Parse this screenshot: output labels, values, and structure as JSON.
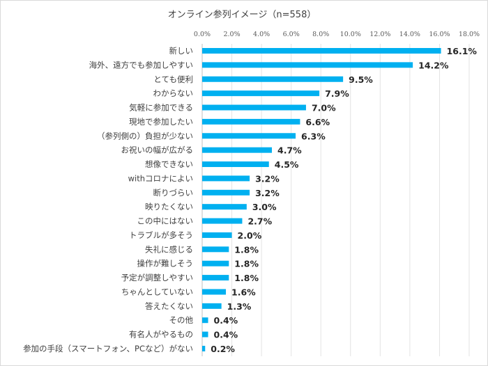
{
  "chart_data": {
    "type": "bar",
    "orientation": "horizontal",
    "title": "オンライン参列イメージ（n=558）",
    "xlabel": "",
    "ylabel": "",
    "xlim": [
      0,
      18
    ],
    "x_ticks": [
      "0.0%",
      "2.0%",
      "4.0%",
      "6.0%",
      "8.0%",
      "10.0%",
      "12.0%",
      "14.0%",
      "16.0%",
      "18.0%"
    ],
    "grid": true,
    "bar_color": "#00b0f0",
    "categories": [
      "新しい",
      "海外、遠方でも参加しやすい",
      "とても便利",
      "わからない",
      "気軽に参加できる",
      "現地で参加したい",
      "（参列側の）負担が少ない",
      "お祝いの幅が広がる",
      "想像できない",
      "withコロナによい",
      "断りづらい",
      "映りたくない",
      "この中にはない",
      "トラブルが多そう",
      "失礼に感じる",
      "操作が難しそう",
      "予定が調整しやすい",
      "ちゃんとしていない",
      "答えたくない",
      "その他",
      "有名人がやるもの",
      "参加の手段（スマートフォン、PCなど）がない"
    ],
    "values": [
      16.1,
      14.2,
      9.5,
      7.9,
      7.0,
      6.6,
      6.3,
      4.7,
      4.5,
      3.2,
      3.2,
      3.0,
      2.7,
      2.0,
      1.8,
      1.8,
      1.8,
      1.6,
      1.3,
      0.4,
      0.4,
      0.2
    ],
    "data_labels": [
      "16.1%",
      "14.2%",
      "9.5%",
      "7.9%",
      "7.0%",
      "6.6%",
      "6.3%",
      "4.7%",
      "4.5%",
      "3.2%",
      "3.2%",
      "3.0%",
      "2.7%",
      "2.0%",
      "1.8%",
      "1.8%",
      "1.8%",
      "1.6%",
      "1.3%",
      "0.4%",
      "0.4%",
      "0.2%"
    ]
  }
}
